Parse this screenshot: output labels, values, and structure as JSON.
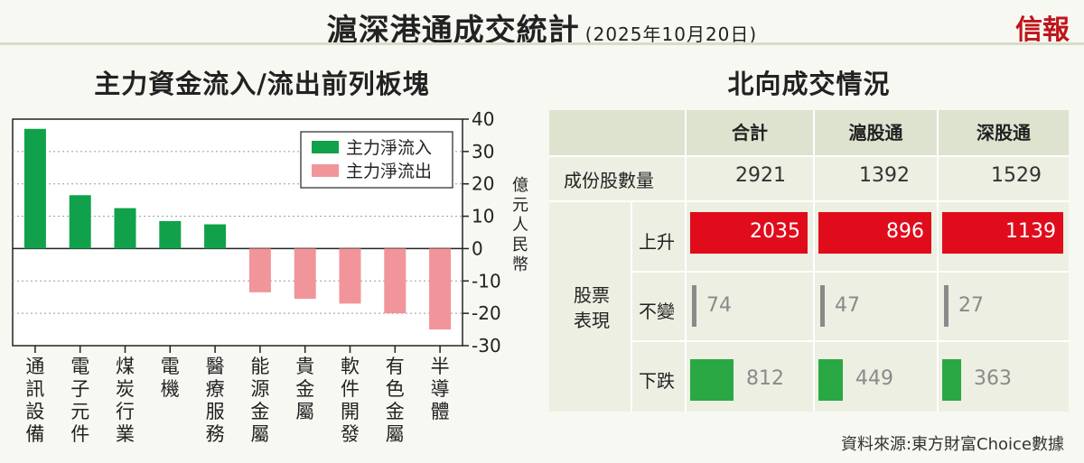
{
  "header": {
    "title": "滬深港通成交統計",
    "date": "(2025年10月20日)",
    "brand": "信報"
  },
  "left": {
    "title": "主力資金流入/流出前列板塊",
    "unit": "億元人民幣"
  },
  "colors": {
    "inflow": "#12a14b",
    "outflow": "#f1959a",
    "up": "#e00c1c",
    "flat": "#8a8a8a",
    "down": "#2aa844"
  },
  "chart_data": {
    "type": "bar",
    "categories": [
      "通訊設備",
      "電子元件",
      "煤炭行業",
      "電機",
      "醫療服務",
      "能源金屬",
      "貴金屬",
      "軟件開發",
      "有色金屬",
      "半導體"
    ],
    "series": [
      {
        "name": "主力淨流入",
        "values": [
          37,
          16.5,
          12.5,
          8.5,
          7.5,
          null,
          null,
          null,
          null,
          null
        ]
      },
      {
        "name": "主力淨流出",
        "values": [
          null,
          null,
          null,
          null,
          null,
          -13.5,
          -15.5,
          -17,
          -20,
          -25
        ]
      }
    ],
    "yticks": [
      "40",
      "30",
      "20",
      "10",
      "0",
      "-10",
      "-20",
      "-30"
    ],
    "ylim": [
      -30,
      40
    ],
    "grid": "dotted",
    "legend": "top-right",
    "ylabel": "億元人民幣"
  },
  "right": {
    "title": "北向成交情況",
    "columns": [
      "合計",
      "滬股通",
      "深股通"
    ],
    "constituents": {
      "label": "成份股數量",
      "values": [
        "2921",
        "1392",
        "1529"
      ]
    },
    "group_label": "股票表現",
    "rows": [
      {
        "label": "上升",
        "values": [
          2035,
          896,
          1139
        ],
        "texts": [
          "2035",
          "896",
          "1139"
        ]
      },
      {
        "label": "不變",
        "values": [
          74,
          47,
          27
        ],
        "texts": [
          "74",
          "47",
          "27"
        ]
      },
      {
        "label": "下跌",
        "values": [
          812,
          449,
          363
        ],
        "texts": [
          "812",
          "449",
          "363"
        ]
      }
    ]
  },
  "footer": {
    "source": "資料來源:東方財富Choice數據"
  }
}
